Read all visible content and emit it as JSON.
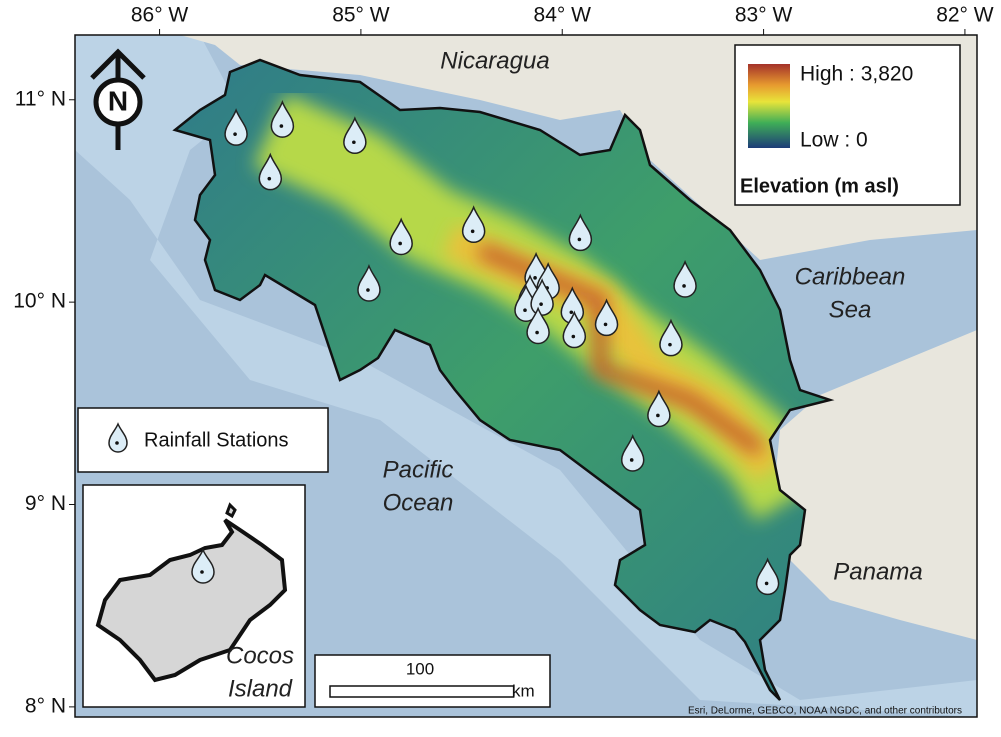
{
  "map": {
    "xlim": [
      -86.42,
      -81.94
    ],
    "ylim": [
      7.95,
      11.32
    ],
    "xticks": [
      {
        "value": -86,
        "label": "86° W"
      },
      {
        "value": -85,
        "label": "85° W"
      },
      {
        "value": -84,
        "label": "84° W"
      },
      {
        "value": -83,
        "label": "83° W"
      },
      {
        "value": -82,
        "label": "82° W"
      }
    ],
    "yticks": [
      {
        "value": 11,
        "label": "11° N"
      },
      {
        "value": 10,
        "label": "10° N"
      },
      {
        "value": 9,
        "label": "9° N"
      },
      {
        "value": 8,
        "label": "8° N"
      }
    ],
    "places": {
      "nicaragua": "Nicaragua",
      "caribbean": [
        "Caribbean",
        "Sea"
      ],
      "pacific": [
        "Pacific",
        "Ocean"
      ],
      "panama": "Panama",
      "cocos": [
        "Cocos",
        "Island"
      ]
    },
    "legend": {
      "high": {
        "value": 3820,
        "label": "High : 3,820"
      },
      "low": {
        "value": 0,
        "label": "Low : 0"
      },
      "title": "Elevation (m asl)",
      "stations": "Rainfall Stations"
    },
    "scale": {
      "value": 100,
      "unit": "km"
    },
    "north": "N",
    "attribution": "Esri, DeLorme, GEBCO, NOAA NGDC, and other contributors",
    "stations": {
      "lon": [
        -85.62,
        -85.39,
        -85.03,
        -85.45,
        -84.8,
        -84.44,
        -83.91,
        -84.96,
        -84.13,
        -84.07,
        -84.16,
        -84.18,
        -84.1,
        -83.95,
        -84.12,
        -83.94,
        -83.78,
        -83.39,
        -83.46,
        -83.52,
        -83.65,
        -82.98
      ],
      "lat": [
        10.83,
        10.87,
        10.79,
        10.61,
        10.29,
        10.35,
        10.31,
        10.06,
        10.12,
        10.07,
        10.01,
        9.96,
        9.99,
        9.95,
        9.85,
        9.83,
        9.89,
        10.08,
        9.79,
        9.44,
        9.22,
        8.61
      ]
    }
  }
}
